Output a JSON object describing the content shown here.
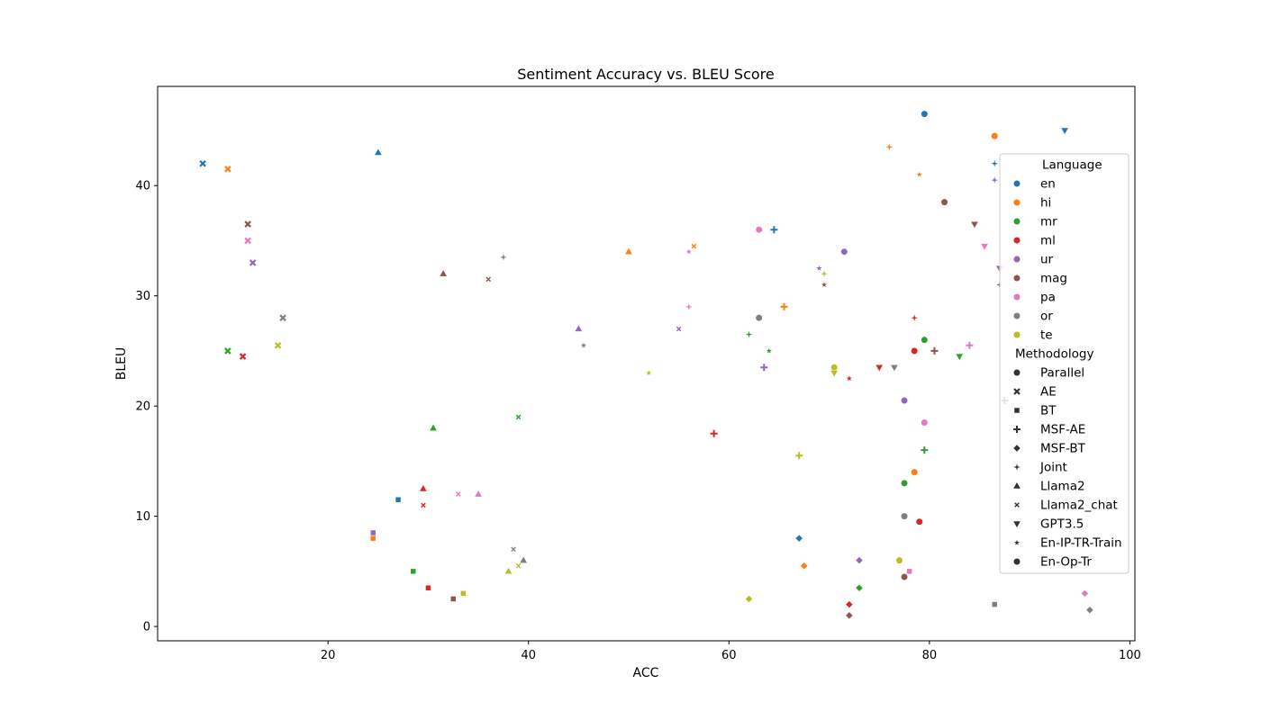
{
  "chart_data": {
    "type": "scatter",
    "title": "Sentiment Accuracy vs. BLEU Score",
    "xlabel": "ACC",
    "ylabel": "BLEU",
    "xlim": [
      3,
      100.5
    ],
    "ylim": [
      -1.3,
      49
    ],
    "xticks": [
      20,
      40,
      60,
      80,
      100
    ],
    "yticks": [
      0,
      10,
      20,
      30,
      40
    ],
    "grid": false,
    "legend_position": "right",
    "legend_hue_title": "Language",
    "legend_style_title": "Methodology",
    "languages": [
      {
        "name": "en",
        "color": "#1f77b4"
      },
      {
        "name": "hi",
        "color": "#ff7f0e"
      },
      {
        "name": "mr",
        "color": "#2ca02c"
      },
      {
        "name": "ml",
        "color": "#d62728"
      },
      {
        "name": "ur",
        "color": "#9467bd"
      },
      {
        "name": "mag",
        "color": "#8c564b"
      },
      {
        "name": "pa",
        "color": "#e377c2"
      },
      {
        "name": "or",
        "color": "#7f7f7f"
      },
      {
        "name": "te",
        "color": "#bcbd22"
      }
    ],
    "methodologies": [
      {
        "name": "Parallel",
        "marker": "circle"
      },
      {
        "name": "AE",
        "marker": "x"
      },
      {
        "name": "BT",
        "marker": "square"
      },
      {
        "name": "MSF-AE",
        "marker": "plus"
      },
      {
        "name": "MSF-BT",
        "marker": "diamond"
      },
      {
        "name": "Joint",
        "marker": "star4"
      },
      {
        "name": "Llama2",
        "marker": "triangle-up"
      },
      {
        "name": "Llama2_chat",
        "marker": "x-small"
      },
      {
        "name": "GPT3.5",
        "marker": "triangle-down"
      },
      {
        "name": "En-IP-TR-Train",
        "marker": "star"
      },
      {
        "name": "En-Op-Tr",
        "marker": "circle"
      }
    ],
    "points": [
      {
        "lang": "en",
        "method": "Parallel",
        "x": 79.5,
        "y": 46.5
      },
      {
        "lang": "en",
        "method": "AE",
        "x": 7.5,
        "y": 42
      },
      {
        "lang": "en",
        "method": "BT",
        "x": 27,
        "y": 11.5
      },
      {
        "lang": "en",
        "method": "MSF-AE",
        "x": 64.5,
        "y": 36
      },
      {
        "lang": "en",
        "method": "MSF-BT",
        "x": 67,
        "y": 8
      },
      {
        "lang": "en",
        "method": "Joint",
        "x": 86.5,
        "y": 42
      },
      {
        "lang": "en",
        "method": "Llama2",
        "x": 25,
        "y": 43
      },
      {
        "lang": "en",
        "method": "GPT3.5",
        "x": 93.5,
        "y": 45
      },
      {
        "lang": "hi",
        "method": "Parallel",
        "x": 86.5,
        "y": 44.5
      },
      {
        "lang": "hi",
        "method": "AE",
        "x": 10,
        "y": 41.5
      },
      {
        "lang": "hi",
        "method": "BT",
        "x": 24.5,
        "y": 8
      },
      {
        "lang": "hi",
        "method": "MSF-AE",
        "x": 65.5,
        "y": 29
      },
      {
        "lang": "hi",
        "method": "MSF-BT",
        "x": 67.5,
        "y": 5.5
      },
      {
        "lang": "hi",
        "method": "Joint",
        "x": 76,
        "y": 43.5
      },
      {
        "lang": "hi",
        "method": "Llama2",
        "x": 50,
        "y": 34
      },
      {
        "lang": "hi",
        "method": "Llama2_chat",
        "x": 56.5,
        "y": 34.5
      },
      {
        "lang": "hi",
        "method": "En-IP-TR-Train",
        "x": 79,
        "y": 41
      },
      {
        "lang": "hi",
        "method": "En-Op-Tr",
        "x": 78.5,
        "y": 14
      },
      {
        "lang": "mr",
        "method": "Parallel",
        "x": 79.5,
        "y": 26
      },
      {
        "lang": "mr",
        "method": "AE",
        "x": 10,
        "y": 25
      },
      {
        "lang": "mr",
        "method": "BT",
        "x": 28.5,
        "y": 5
      },
      {
        "lang": "mr",
        "method": "MSF-AE",
        "x": 79.5,
        "y": 16
      },
      {
        "lang": "mr",
        "method": "MSF-BT",
        "x": 73,
        "y": 3.5
      },
      {
        "lang": "mr",
        "method": "Joint",
        "x": 62,
        "y": 26.5
      },
      {
        "lang": "mr",
        "method": "Llama2",
        "x": 30.5,
        "y": 18
      },
      {
        "lang": "mr",
        "method": "Llama2_chat",
        "x": 39,
        "y": 19
      },
      {
        "lang": "mr",
        "method": "GPT3.5",
        "x": 83,
        "y": 24.5
      },
      {
        "lang": "mr",
        "method": "En-IP-TR-Train",
        "x": 64,
        "y": 25
      },
      {
        "lang": "mr",
        "method": "En-Op-Tr",
        "x": 77.5,
        "y": 13
      },
      {
        "lang": "ml",
        "method": "Parallel",
        "x": 78.5,
        "y": 25
      },
      {
        "lang": "ml",
        "method": "AE",
        "x": 11.5,
        "y": 24.5
      },
      {
        "lang": "ml",
        "method": "BT",
        "x": 30,
        "y": 3.5
      },
      {
        "lang": "ml",
        "method": "MSF-AE",
        "x": 58.5,
        "y": 17.5
      },
      {
        "lang": "ml",
        "method": "MSF-BT",
        "x": 72,
        "y": 2
      },
      {
        "lang": "ml",
        "method": "Joint",
        "x": 78.5,
        "y": 28
      },
      {
        "lang": "ml",
        "method": "Llama2",
        "x": 29.5,
        "y": 12.5
      },
      {
        "lang": "ml",
        "method": "Llama2_chat",
        "x": 29.5,
        "y": 11
      },
      {
        "lang": "ml",
        "method": "GPT3.5",
        "x": 75,
        "y": 23.5
      },
      {
        "lang": "ml",
        "method": "En-IP-TR-Train",
        "x": 72,
        "y": 22.5
      },
      {
        "lang": "ml",
        "method": "En-Op-Tr",
        "x": 79,
        "y": 9.5
      },
      {
        "lang": "ur",
        "method": "Parallel",
        "x": 71.5,
        "y": 34
      },
      {
        "lang": "ur",
        "method": "AE",
        "x": 12.5,
        "y": 33
      },
      {
        "lang": "ur",
        "method": "BT",
        "x": 24.5,
        "y": 8.5
      },
      {
        "lang": "ur",
        "method": "MSF-AE",
        "x": 63.5,
        "y": 23.5
      },
      {
        "lang": "ur",
        "method": "MSF-BT",
        "x": 73,
        "y": 6
      },
      {
        "lang": "ur",
        "method": "Joint",
        "x": 86.5,
        "y": 40.5
      },
      {
        "lang": "ur",
        "method": "Llama2",
        "x": 45,
        "y": 27
      },
      {
        "lang": "ur",
        "method": "Llama2_chat",
        "x": 55,
        "y": 27
      },
      {
        "lang": "ur",
        "method": "GPT3.5",
        "x": 87,
        "y": 32.5
      },
      {
        "lang": "ur",
        "method": "En-IP-TR-Train",
        "x": 69,
        "y": 32.5
      },
      {
        "lang": "ur",
        "method": "En-Op-Tr",
        "x": 77.5,
        "y": 20.5
      },
      {
        "lang": "mag",
        "method": "Parallel",
        "x": 81.5,
        "y": 38.5
      },
      {
        "lang": "mag",
        "method": "AE",
        "x": 12,
        "y": 36.5
      },
      {
        "lang": "mag",
        "method": "BT",
        "x": 32.5,
        "y": 2.5
      },
      {
        "lang": "mag",
        "method": "MSF-AE",
        "x": 80.5,
        "y": 25
      },
      {
        "lang": "mag",
        "method": "MSF-BT",
        "x": 72,
        "y": 1
      },
      {
        "lang": "mag",
        "method": "Joint",
        "x": 87,
        "y": 31
      },
      {
        "lang": "mag",
        "method": "Llama2",
        "x": 31.5,
        "y": 32
      },
      {
        "lang": "mag",
        "method": "Llama2_chat",
        "x": 36,
        "y": 31.5
      },
      {
        "lang": "mag",
        "method": "GPT3.5",
        "x": 84.5,
        "y": 36.5
      },
      {
        "lang": "mag",
        "method": "En-IP-TR-Train",
        "x": 69.5,
        "y": 31
      },
      {
        "lang": "mag",
        "method": "En-Op-Tr",
        "x": 77.5,
        "y": 4.5
      },
      {
        "lang": "pa",
        "method": "Parallel",
        "x": 63,
        "y": 36
      },
      {
        "lang": "pa",
        "method": "AE",
        "x": 12,
        "y": 35
      },
      {
        "lang": "pa",
        "method": "BT",
        "x": 78,
        "y": 5
      },
      {
        "lang": "pa",
        "method": "MSF-AE",
        "x": 84,
        "y": 25.5
      },
      {
        "lang": "pa",
        "method": "MSF-BT",
        "x": 95.5,
        "y": 3
      },
      {
        "lang": "pa",
        "method": "Joint",
        "x": 56,
        "y": 29
      },
      {
        "lang": "pa",
        "method": "Llama2",
        "x": 35,
        "y": 12
      },
      {
        "lang": "pa",
        "method": "Llama2_chat",
        "x": 33,
        "y": 12
      },
      {
        "lang": "pa",
        "method": "GPT3.5",
        "x": 85.5,
        "y": 34.5
      },
      {
        "lang": "pa",
        "method": "En-IP-TR-Train",
        "x": 56,
        "y": 34
      },
      {
        "lang": "pa",
        "method": "En-Op-Tr",
        "x": 79.5,
        "y": 18.5
      },
      {
        "lang": "or",
        "method": "Parallel",
        "x": 63,
        "y": 28
      },
      {
        "lang": "or",
        "method": "AE",
        "x": 15.5,
        "y": 28
      },
      {
        "lang": "or",
        "method": "BT",
        "x": 86.5,
        "y": 2
      },
      {
        "lang": "or",
        "method": "MSF-AE",
        "x": 87.5,
        "y": 20.5
      },
      {
        "lang": "or",
        "method": "MSF-BT",
        "x": 96,
        "y": 1.5
      },
      {
        "lang": "or",
        "method": "Joint",
        "x": 37.5,
        "y": 33.5
      },
      {
        "lang": "or",
        "method": "Llama2",
        "x": 39.5,
        "y": 6
      },
      {
        "lang": "or",
        "method": "Llama2_chat",
        "x": 38.5,
        "y": 7
      },
      {
        "lang": "or",
        "method": "GPT3.5",
        "x": 76.5,
        "y": 23.5
      },
      {
        "lang": "or",
        "method": "En-IP-TR-Train",
        "x": 45.5,
        "y": 25.5
      },
      {
        "lang": "or",
        "method": "En-Op-Tr",
        "x": 77.5,
        "y": 10
      },
      {
        "lang": "te",
        "method": "Parallel",
        "x": 70.5,
        "y": 23.5
      },
      {
        "lang": "te",
        "method": "AE",
        "x": 15,
        "y": 25.5
      },
      {
        "lang": "te",
        "method": "BT",
        "x": 33.5,
        "y": 3
      },
      {
        "lang": "te",
        "method": "MSF-AE",
        "x": 67,
        "y": 15.5
      },
      {
        "lang": "te",
        "method": "MSF-BT",
        "x": 62,
        "y": 2.5
      },
      {
        "lang": "te",
        "method": "Joint",
        "x": 69.5,
        "y": 32
      },
      {
        "lang": "te",
        "method": "Llama2",
        "x": 38,
        "y": 5
      },
      {
        "lang": "te",
        "method": "Llama2_chat",
        "x": 39,
        "y": 5.5
      },
      {
        "lang": "te",
        "method": "GPT3.5",
        "x": 70.5,
        "y": 23
      },
      {
        "lang": "te",
        "method": "En-IP-TR-Train",
        "x": 52,
        "y": 23
      },
      {
        "lang": "te",
        "method": "En-Op-Tr",
        "x": 77,
        "y": 6
      }
    ]
  }
}
